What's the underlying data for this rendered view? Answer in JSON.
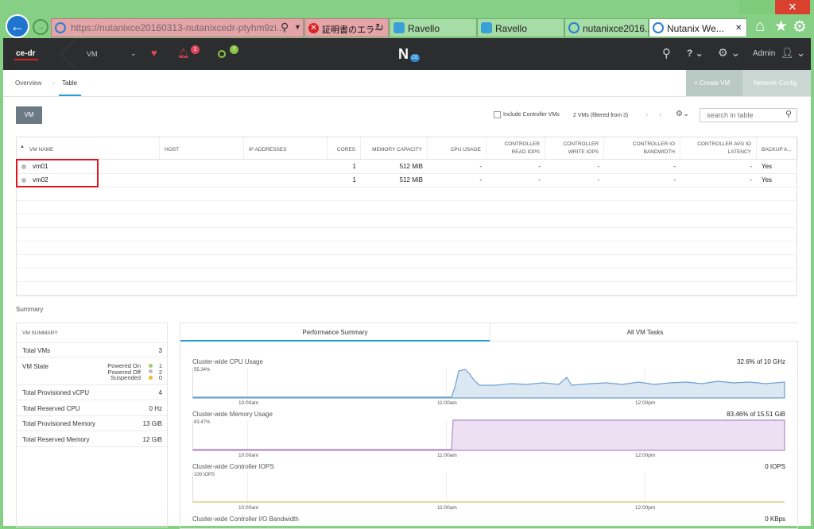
{
  "browser": {
    "address": "https://nutanixce20160313-nutanixcedr-ptyhm9zi...",
    "cert_error": "証明書のエラー",
    "tabs": [
      "Ravello",
      "Ravello",
      "nutanixce2016...",
      "Nutanix We..."
    ]
  },
  "header": {
    "cluster": "ce-dr",
    "menu": "VM",
    "alerts": "1",
    "tasks": "7",
    "logo": "N",
    "logo_badge": "CE",
    "user": "Admin"
  },
  "subnav": {
    "tabs": [
      "Overview",
      "Table"
    ],
    "separator": "-",
    "buttons": [
      "+ Create VM",
      "Network Config"
    ]
  },
  "toolbar": {
    "button": "VM",
    "checkbox_label": "Include Controller VMs",
    "count": "2 VMs (filtered from 3)",
    "search_placeholder": "search in table"
  },
  "table": {
    "columns": [
      "VM NAME",
      "HOST",
      "IP ADDRESSES",
      "CORES",
      "MEMORY CAPACITY",
      "CPU USAGE",
      "CONTROLLER READ IOPS",
      "CONTROLLER WRITE IOPS",
      "CONTROLLER IO BANDWIDTH",
      "CONTROLLER AVG IO LATENCY",
      "BACKUP A..."
    ],
    "rows": [
      [
        "vm01",
        null,
        null,
        1,
        "512 MiB",
        "-",
        "-",
        "-",
        "-",
        "-",
        "Yes"
      ],
      [
        "vm02",
        null,
        null,
        1,
        "512 MiB",
        "-",
        "-",
        "-",
        "-",
        "-",
        "Yes"
      ]
    ]
  },
  "summary": {
    "title": "Summary",
    "panel_title": "VM SUMMARY",
    "total_vms": {
      "label": "Total VMs",
      "value": 3
    },
    "vm_state": {
      "label": "VM State",
      "states": [
        {
          "name": "Powered On",
          "value": 1
        },
        {
          "name": "Powered Off",
          "value": 2
        },
        {
          "name": "Suspended",
          "value": 0
        }
      ]
    },
    "rows": [
      {
        "label": "Total Provisioned vCPU",
        "value": "4"
      },
      {
        "label": "Total Reserved CPU",
        "value": "0 Hz"
      },
      {
        "label": "Total Provisioned Memory",
        "value": "13 GiB"
      },
      {
        "label": "Total Reserved Memory",
        "value": "12 GiB"
      }
    ]
  },
  "performance": {
    "tabs": [
      "Performance Summary",
      "All VM Tasks"
    ],
    "charts": [
      {
        "title": "Cluster-wide CPU Usage",
        "value": "32.6% of 10 GHz",
        "max": "55.34%",
        "x_labels": [
          "10:00am",
          "11:00am",
          "12:00pm"
        ]
      },
      {
        "title": "Cluster-wide Memory Usage",
        "value": "83.46% of 15.51 GiB",
        "max": "83.47%",
        "x_labels": [
          "10:00am",
          "11:00am",
          "12:00pm"
        ]
      },
      {
        "title": "Cluster-wide Controller IOPS",
        "value": "0 IOPS",
        "max": "100 IOPS",
        "x_labels": [
          "10:00am",
          "11:00am",
          "12:00pm"
        ]
      },
      {
        "title": "Cluster-wide Controller I/O Bandwidth",
        "value": "0 KBps"
      }
    ]
  }
}
